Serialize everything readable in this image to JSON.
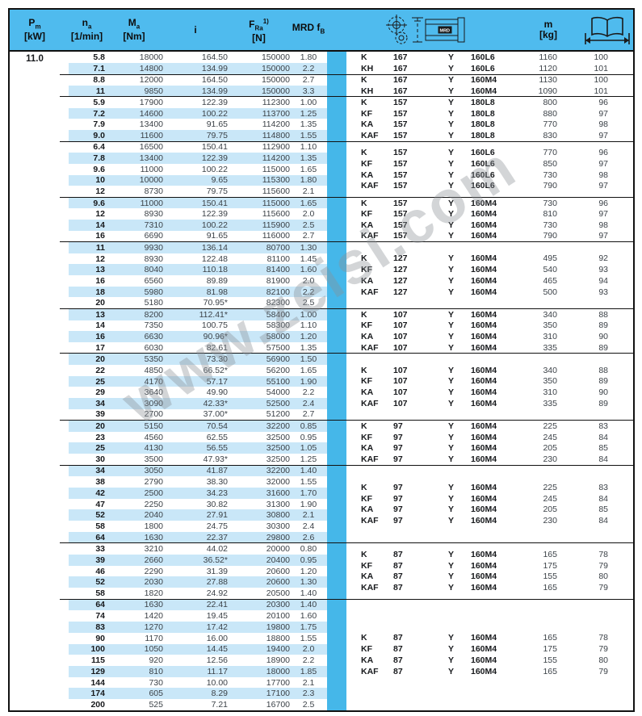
{
  "colors": {
    "header_bg": "#4fbbee",
    "divider_strip": "#45b7e9",
    "row_stripe": "#c9e7f8",
    "border": "#111111"
  },
  "watermark": "www.zeisi.com",
  "header": {
    "pm": {
      "sym": "P",
      "sub": "m",
      "unit": "[kW]"
    },
    "na": {
      "sym": "n",
      "sub": "a",
      "unit": "[1/min]"
    },
    "ma": {
      "sym": "M",
      "sub": "a",
      "unit": "[Nm]"
    },
    "i": {
      "sym": "i"
    },
    "fra": {
      "sym": "F",
      "sub": "Ra",
      "sup": "1)",
      "unit": "[N]"
    },
    "mrd": {
      "sym": "MRD f",
      "sub": "B"
    },
    "m": {
      "sym": "m",
      "unit": "[kg]"
    },
    "motor_label": "MRD",
    "icons": [
      "gearbox-motor-icon",
      "book-span-icon"
    ]
  },
  "table": {
    "pm_value": "11.0",
    "groups": [
      {
        "rows": [
          {
            "na": "5.8",
            "ma": "18000",
            "i": "164.50",
            "fra": "150000",
            "fb": "1.80"
          },
          {
            "na": "7.1",
            "ma": "14800",
            "i": "134.99",
            "fra": "150000",
            "fb": "2.2"
          }
        ],
        "variants": [
          {
            "type": "K",
            "size": "167",
            "mount": "Y",
            "motor": "160L6",
            "m": "1160",
            "page": "100"
          },
          {
            "type": "KH",
            "size": "167",
            "mount": "Y",
            "motor": "160L6",
            "m": "1120",
            "page": "101"
          }
        ]
      },
      {
        "rows": [
          {
            "na": "8.8",
            "ma": "12000",
            "i": "164.50",
            "fra": "150000",
            "fb": "2.7"
          },
          {
            "na": "11",
            "ma": "9850",
            "i": "134.99",
            "fra": "150000",
            "fb": "3.3"
          }
        ],
        "variants": [
          {
            "type": "K",
            "size": "167",
            "mount": "Y",
            "motor": "160M4",
            "m": "1130",
            "page": "100"
          },
          {
            "type": "KH",
            "size": "167",
            "mount": "Y",
            "motor": "160M4",
            "m": "1090",
            "page": "101"
          }
        ]
      },
      {
        "rows": [
          {
            "na": "5.9",
            "ma": "17900",
            "i": "122.39",
            "fra": "112300",
            "fb": "1.00"
          },
          {
            "na": "7.2",
            "ma": "14600",
            "i": "100.22",
            "fra": "113700",
            "fb": "1.25"
          },
          {
            "na": "7.9",
            "ma": "13400",
            "i": "91.65",
            "fra": "114200",
            "fb": "1.35"
          },
          {
            "na": "9.0",
            "ma": "11600",
            "i": "79.75",
            "fra": "114800",
            "fb": "1.55"
          }
        ],
        "variants": [
          {
            "type": "K",
            "size": "157",
            "mount": "Y",
            "motor": "180L8",
            "m": "800",
            "page": "96"
          },
          {
            "type": "KF",
            "size": "157",
            "mount": "Y",
            "motor": "180L8",
            "m": "880",
            "page": "97"
          },
          {
            "type": "KA",
            "size": "157",
            "mount": "Y",
            "motor": "180L8",
            "m": "770",
            "page": "98"
          },
          {
            "type": "KAF",
            "size": "157",
            "mount": "Y",
            "motor": "180L8",
            "m": "830",
            "page": "97"
          }
        ]
      },
      {
        "rows": [
          {
            "na": "6.4",
            "ma": "16500",
            "i": "150.41",
            "fra": "112900",
            "fb": "1.10"
          },
          {
            "na": "7.8",
            "ma": "13400",
            "i": "122.39",
            "fra": "114200",
            "fb": "1.35"
          },
          {
            "na": "9.6",
            "ma": "11000",
            "i": "100.22",
            "fra": "115000",
            "fb": "1.65"
          },
          {
            "na": "10",
            "ma": "10000",
            "i": "9.65",
            "fra": "115300",
            "fb": "1.80"
          },
          {
            "na": "12",
            "ma": "8730",
            "i": "79.75",
            "fra": "115600",
            "fb": "2.1"
          }
        ],
        "variants": [
          {
            "type": "K",
            "size": "157",
            "mount": "Y",
            "motor": "160L6",
            "m": "770",
            "page": "96"
          },
          {
            "type": "KF",
            "size": "157",
            "mount": "Y",
            "motor": "160L6",
            "m": "850",
            "page": "97"
          },
          {
            "type": "KA",
            "size": "157",
            "mount": "Y",
            "motor": "160L6",
            "m": "730",
            "page": "98"
          },
          {
            "type": "KAF",
            "size": "157",
            "mount": "Y",
            "motor": "160L6",
            "m": "790",
            "page": "97"
          }
        ]
      },
      {
        "rows": [
          {
            "na": "9.6",
            "ma": "11000",
            "i": "150.41",
            "fra": "115000",
            "fb": "1.65"
          },
          {
            "na": "12",
            "ma": "8930",
            "i": "122.39",
            "fra": "115600",
            "fb": "2.0"
          },
          {
            "na": "14",
            "ma": "7310",
            "i": "100.22",
            "fra": "115900",
            "fb": "2.5"
          },
          {
            "na": "16",
            "ma": "6690",
            "i": "91.65",
            "fra": "116000",
            "fb": "2.7"
          }
        ],
        "variants": [
          {
            "type": "K",
            "size": "157",
            "mount": "Y",
            "motor": "160M4",
            "m": "730",
            "page": "96"
          },
          {
            "type": "KF",
            "size": "157",
            "mount": "Y",
            "motor": "160M4",
            "m": "810",
            "page": "97"
          },
          {
            "type": "KA",
            "size": "157",
            "mount": "Y",
            "motor": "160M4",
            "m": "730",
            "page": "98"
          },
          {
            "type": "KAF",
            "size": "157",
            "mount": "Y",
            "motor": "160M4",
            "m": "790",
            "page": "97"
          }
        ]
      },
      {
        "rows": [
          {
            "na": "11",
            "ma": "9930",
            "i": "136.14",
            "fra": "80700",
            "fb": "1.30"
          },
          {
            "na": "12",
            "ma": "8930",
            "i": "122.48",
            "fra": "81100",
            "fb": "1.45"
          },
          {
            "na": "13",
            "ma": "8040",
            "i": "110.18",
            "fra": "81400",
            "fb": "1.60"
          },
          {
            "na": "16",
            "ma": "6560",
            "i": "89.89",
            "fra": "81900",
            "fb": "2.0"
          },
          {
            "na": "18",
            "ma": "5980",
            "i": "81.98",
            "fra": "82100",
            "fb": "2.2"
          },
          {
            "na": "20",
            "ma": "5180",
            "i": "70.95*",
            "fra": "82300",
            "fb": "2.5"
          }
        ],
        "variants": [
          {
            "type": "K",
            "size": "127",
            "mount": "Y",
            "motor": "160M4",
            "m": "495",
            "page": "92"
          },
          {
            "type": "KF",
            "size": "127",
            "mount": "Y",
            "motor": "160M4",
            "m": "540",
            "page": "93"
          },
          {
            "type": "KA",
            "size": "127",
            "mount": "Y",
            "motor": "160M4",
            "m": "465",
            "page": "94"
          },
          {
            "type": "KAF",
            "size": "127",
            "mount": "Y",
            "motor": "160M4",
            "m": "500",
            "page": "93"
          }
        ]
      },
      {
        "rows": [
          {
            "na": "13",
            "ma": "8200",
            "i": "112.41*",
            "fra": "58400",
            "fb": "1.00"
          },
          {
            "na": "14",
            "ma": "7350",
            "i": "100.75",
            "fra": "58300",
            "fb": "1.10"
          },
          {
            "na": "16",
            "ma": "6630",
            "i": "90.96*",
            "fra": "58000",
            "fb": "1.20"
          },
          {
            "na": "17",
            "ma": "6030",
            "i": "82.61",
            "fra": "57500",
            "fb": "1.35"
          }
        ],
        "variants": [
          {
            "type": "K",
            "size": "107",
            "mount": "Y",
            "motor": "160M4",
            "m": "340",
            "page": "88"
          },
          {
            "type": "KF",
            "size": "107",
            "mount": "Y",
            "motor": "160M4",
            "m": "350",
            "page": "89"
          },
          {
            "type": "KA",
            "size": "107",
            "mount": "Y",
            "motor": "160M4",
            "m": "310",
            "page": "90"
          },
          {
            "type": "KAF",
            "size": "107",
            "mount": "Y",
            "motor": "160M4",
            "m": "335",
            "page": "89"
          }
        ]
      },
      {
        "rows": [
          {
            "na": "20",
            "ma": "5350",
            "i": "73.30",
            "fra": "56900",
            "fb": "1.50"
          },
          {
            "na": "22",
            "ma": "4850",
            "i": "66.52*",
            "fra": "56200",
            "fb": "1.65"
          },
          {
            "na": "25",
            "ma": "4170",
            "i": "57.17",
            "fra": "55100",
            "fb": "1.90"
          },
          {
            "na": "29",
            "ma": "3640",
            "i": "49.90",
            "fra": "54000",
            "fb": "2.2"
          },
          {
            "na": "34",
            "ma": "3090",
            "i": "42.33*",
            "fra": "52500",
            "fb": "2.4"
          },
          {
            "na": "39",
            "ma": "2700",
            "i": "37.00*",
            "fra": "51200",
            "fb": "2.7"
          }
        ],
        "variants": [
          {
            "type": "K",
            "size": "107",
            "mount": "Y",
            "motor": "160M4",
            "m": "340",
            "page": "88"
          },
          {
            "type": "KF",
            "size": "107",
            "mount": "Y",
            "motor": "160M4",
            "m": "350",
            "page": "89"
          },
          {
            "type": "KA",
            "size": "107",
            "mount": "Y",
            "motor": "160M4",
            "m": "310",
            "page": "90"
          },
          {
            "type": "KAF",
            "size": "107",
            "mount": "Y",
            "motor": "160M4",
            "m": "335",
            "page": "89"
          }
        ]
      },
      {
        "rows": [
          {
            "na": "20",
            "ma": "5150",
            "i": "70.54",
            "fra": "32200",
            "fb": "0.85"
          },
          {
            "na": "23",
            "ma": "4560",
            "i": "62.55",
            "fra": "32500",
            "fb": "0.95"
          },
          {
            "na": "25",
            "ma": "4130",
            "i": "56.55",
            "fra": "32500",
            "fb": "1.05"
          },
          {
            "na": "30",
            "ma": "3500",
            "i": "47.93*",
            "fra": "32500",
            "fb": "1.25"
          }
        ],
        "variants": [
          {
            "type": "K",
            "size": "97",
            "mount": "Y",
            "motor": "160M4",
            "m": "225",
            "page": "83"
          },
          {
            "type": "KF",
            "size": "97",
            "mount": "Y",
            "motor": "160M4",
            "m": "245",
            "page": "84"
          },
          {
            "type": "KA",
            "size": "97",
            "mount": "Y",
            "motor": "160M4",
            "m": "205",
            "page": "85"
          },
          {
            "type": "KAF",
            "size": "97",
            "mount": "Y",
            "motor": "160M4",
            "m": "230",
            "page": "84"
          }
        ]
      },
      {
        "rows": [
          {
            "na": "34",
            "ma": "3050",
            "i": "41.87",
            "fra": "32200",
            "fb": "1.40"
          },
          {
            "na": "38",
            "ma": "2790",
            "i": "38.30",
            "fra": "32000",
            "fb": "1.55"
          },
          {
            "na": "42",
            "ma": "2500",
            "i": "34.23",
            "fra": "31600",
            "fb": "1.70"
          },
          {
            "na": "47",
            "ma": "2250",
            "i": "30.82",
            "fra": "31300",
            "fb": "1.90"
          },
          {
            "na": "52",
            "ma": "2040",
            "i": "27.91",
            "fra": "30800",
            "fb": "2.1"
          },
          {
            "na": "58",
            "ma": "1800",
            "i": "24.75",
            "fra": "30300",
            "fb": "2.4"
          },
          {
            "na": "64",
            "ma": "1630",
            "i": "22.37",
            "fra": "29800",
            "fb": "2.6"
          }
        ],
        "variants": [
          {
            "type": "K",
            "size": "97",
            "mount": "Y",
            "motor": "160M4",
            "m": "225",
            "page": "83"
          },
          {
            "type": "KF",
            "size": "97",
            "mount": "Y",
            "motor": "160M4",
            "m": "245",
            "page": "84"
          },
          {
            "type": "KA",
            "size": "97",
            "mount": "Y",
            "motor": "160M4",
            "m": "205",
            "page": "85"
          },
          {
            "type": "KAF",
            "size": "97",
            "mount": "Y",
            "motor": "160M4",
            "m": "230",
            "page": "84"
          }
        ]
      },
      {
        "rows": [
          {
            "na": "33",
            "ma": "3210",
            "i": "44.02",
            "fra": "20000",
            "fb": "0.80"
          },
          {
            "na": "39",
            "ma": "2660",
            "i": "36.52*",
            "fra": "20400",
            "fb": "0.95"
          },
          {
            "na": "46",
            "ma": "2290",
            "i": "31.39",
            "fra": "20600",
            "fb": "1.20"
          },
          {
            "na": "52",
            "ma": "2030",
            "i": "27.88",
            "fra": "20600",
            "fb": "1.30"
          },
          {
            "na": "58",
            "ma": "1820",
            "i": "24.92",
            "fra": "20500",
            "fb": "1.40"
          }
        ],
        "variants": [
          {
            "type": "K",
            "size": "87",
            "mount": "Y",
            "motor": "160M4",
            "m": "165",
            "page": "78"
          },
          {
            "type": "KF",
            "size": "87",
            "mount": "Y",
            "motor": "160M4",
            "m": "175",
            "page": "79"
          },
          {
            "type": "KA",
            "size": "87",
            "mount": "Y",
            "motor": "160M4",
            "m": "155",
            "page": "80"
          },
          {
            "type": "KAF",
            "size": "87",
            "mount": "Y",
            "motor": "160M4",
            "m": "165",
            "page": "79"
          }
        ]
      },
      {
        "rows": [
          {
            "na": "64",
            "ma": "1630",
            "i": "22.41",
            "fra": "20300",
            "fb": "1.40"
          },
          {
            "na": "74",
            "ma": "1420",
            "i": "19.45",
            "fra": "20100",
            "fb": "1.60"
          },
          {
            "na": "83",
            "ma": "1270",
            "i": "17.42",
            "fra": "19800",
            "fb": "1.75"
          },
          {
            "na": "90",
            "ma": "1170",
            "i": "16.00",
            "fra": "18800",
            "fb": "1.55"
          },
          {
            "na": "100",
            "ma": "1050",
            "i": "14.45",
            "fra": "19400",
            "fb": "2.0"
          },
          {
            "na": "115",
            "ma": "920",
            "i": "12.56",
            "fra": "18900",
            "fb": "2.2"
          },
          {
            "na": "129",
            "ma": "810",
            "i": "11.17",
            "fra": "18000",
            "fb": "1.85"
          },
          {
            "na": "144",
            "ma": "730",
            "i": "10.00",
            "fra": "17700",
            "fb": "2.1"
          },
          {
            "na": "174",
            "ma": "605",
            "i": "8.29",
            "fra": "17100",
            "fb": "2.3"
          },
          {
            "na": "200",
            "ma": "525",
            "i": "7.21",
            "fra": "16700",
            "fb": "2.5"
          }
        ],
        "variants": [
          {
            "type": "K",
            "size": "87",
            "mount": "Y",
            "motor": "160M4",
            "m": "165",
            "page": "78"
          },
          {
            "type": "KF",
            "size": "87",
            "mount": "Y",
            "motor": "160M4",
            "m": "175",
            "page": "79"
          },
          {
            "type": "KA",
            "size": "87",
            "mount": "Y",
            "motor": "160M4",
            "m": "155",
            "page": "80"
          },
          {
            "type": "KAF",
            "size": "87",
            "mount": "Y",
            "motor": "160M4",
            "m": "165",
            "page": "79"
          }
        ]
      }
    ]
  }
}
